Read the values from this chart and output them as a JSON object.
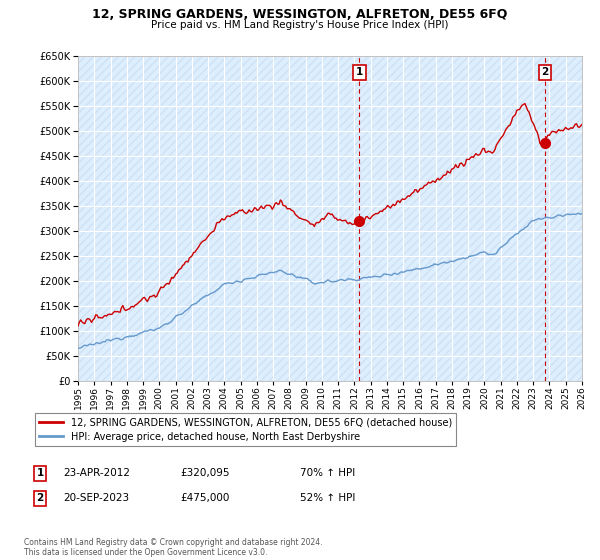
{
  "title": "12, SPRING GARDENS, WESSINGTON, ALFRETON, DE55 6FQ",
  "subtitle": "Price paid vs. HM Land Registry's House Price Index (HPI)",
  "ylim": [
    0,
    650000
  ],
  "yticks": [
    0,
    50000,
    100000,
    150000,
    200000,
    250000,
    300000,
    350000,
    400000,
    450000,
    500000,
    550000,
    600000,
    650000
  ],
  "xlim": [
    1995,
    2026
  ],
  "hpi_color": "#6699cc",
  "price_color": "#cc0000",
  "vline_color": "#cc0000",
  "background_color": "#ddeeff",
  "hatch_color": "#c8d8ee",
  "legend_entries": [
    "12, SPRING GARDENS, WESSINGTON, ALFRETON, DE55 6FQ (detached house)",
    "HPI: Average price, detached house, North East Derbyshire"
  ],
  "annotation1": {
    "num": "1",
    "date": "23-APR-2012",
    "price": "£320,095",
    "hpi": "70% ↑ HPI"
  },
  "annotation2": {
    "num": "2",
    "date": "20-SEP-2023",
    "price": "£475,000",
    "hpi": "52% ↑ HPI"
  },
  "footnote": "Contains HM Land Registry data © Crown copyright and database right 2024.\nThis data is licensed under the Open Government Licence v3.0.",
  "transaction1_x": 2012.31,
  "transaction1_y": 320095,
  "transaction2_x": 2023.72,
  "transaction2_y": 475000
}
